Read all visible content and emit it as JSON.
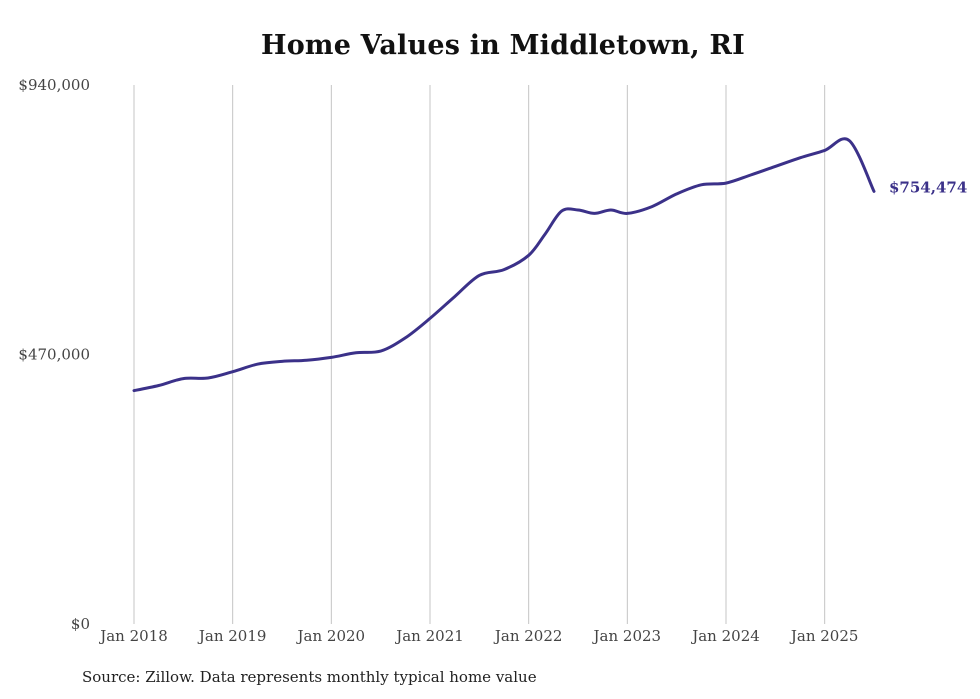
{
  "chart_data": {
    "type": "line",
    "title": "Home Values in Middletown, RI",
    "xlabel": "",
    "ylabel": "",
    "x_ticks": [
      "Jan 2018",
      "Jan 2019",
      "Jan 2020",
      "Jan 2021",
      "Jan 2022",
      "Jan 2023",
      "Jan 2024",
      "Jan 2025"
    ],
    "y_ticks": [
      "$0",
      "$470,000",
      "$940,000"
    ],
    "y_tick_values": [
      0,
      470000,
      940000
    ],
    "ylim": [
      0,
      940000
    ],
    "xlim": [
      "2018-01",
      "2025-07"
    ],
    "grid": {
      "vertical": true,
      "horizontal": false
    },
    "color": "#3b3189",
    "end_label": "$754,474",
    "series": [
      {
        "x": [
          "2018-01",
          "2018-04",
          "2018-07",
          "2018-10",
          "2019-01",
          "2019-04",
          "2019-07",
          "2019-10",
          "2020-01",
          "2020-04",
          "2020-07",
          "2020-10",
          "2021-01",
          "2021-04",
          "2021-07",
          "2021-10",
          "2022-01",
          "2022-03",
          "2022-05",
          "2022-07",
          "2022-09",
          "2022-11",
          "2023-01",
          "2023-04",
          "2023-07",
          "2023-10",
          "2024-01",
          "2024-04",
          "2024-07",
          "2024-10",
          "2025-01",
          "2025-04",
          "2025-07"
        ],
        "values": [
          407000,
          416000,
          428000,
          429000,
          440000,
          453000,
          458000,
          460000,
          465000,
          473000,
          476000,
          499000,
          533000,
          571000,
          608000,
          618000,
          643000,
          680000,
          720000,
          722000,
          716000,
          722000,
          716000,
          728000,
          750000,
          766000,
          769000,
          783000,
          798000,
          813000,
          826000,
          843000,
          754474
        ]
      }
    ]
  },
  "source": "Source: Zillow. Data represents monthly typical home value"
}
